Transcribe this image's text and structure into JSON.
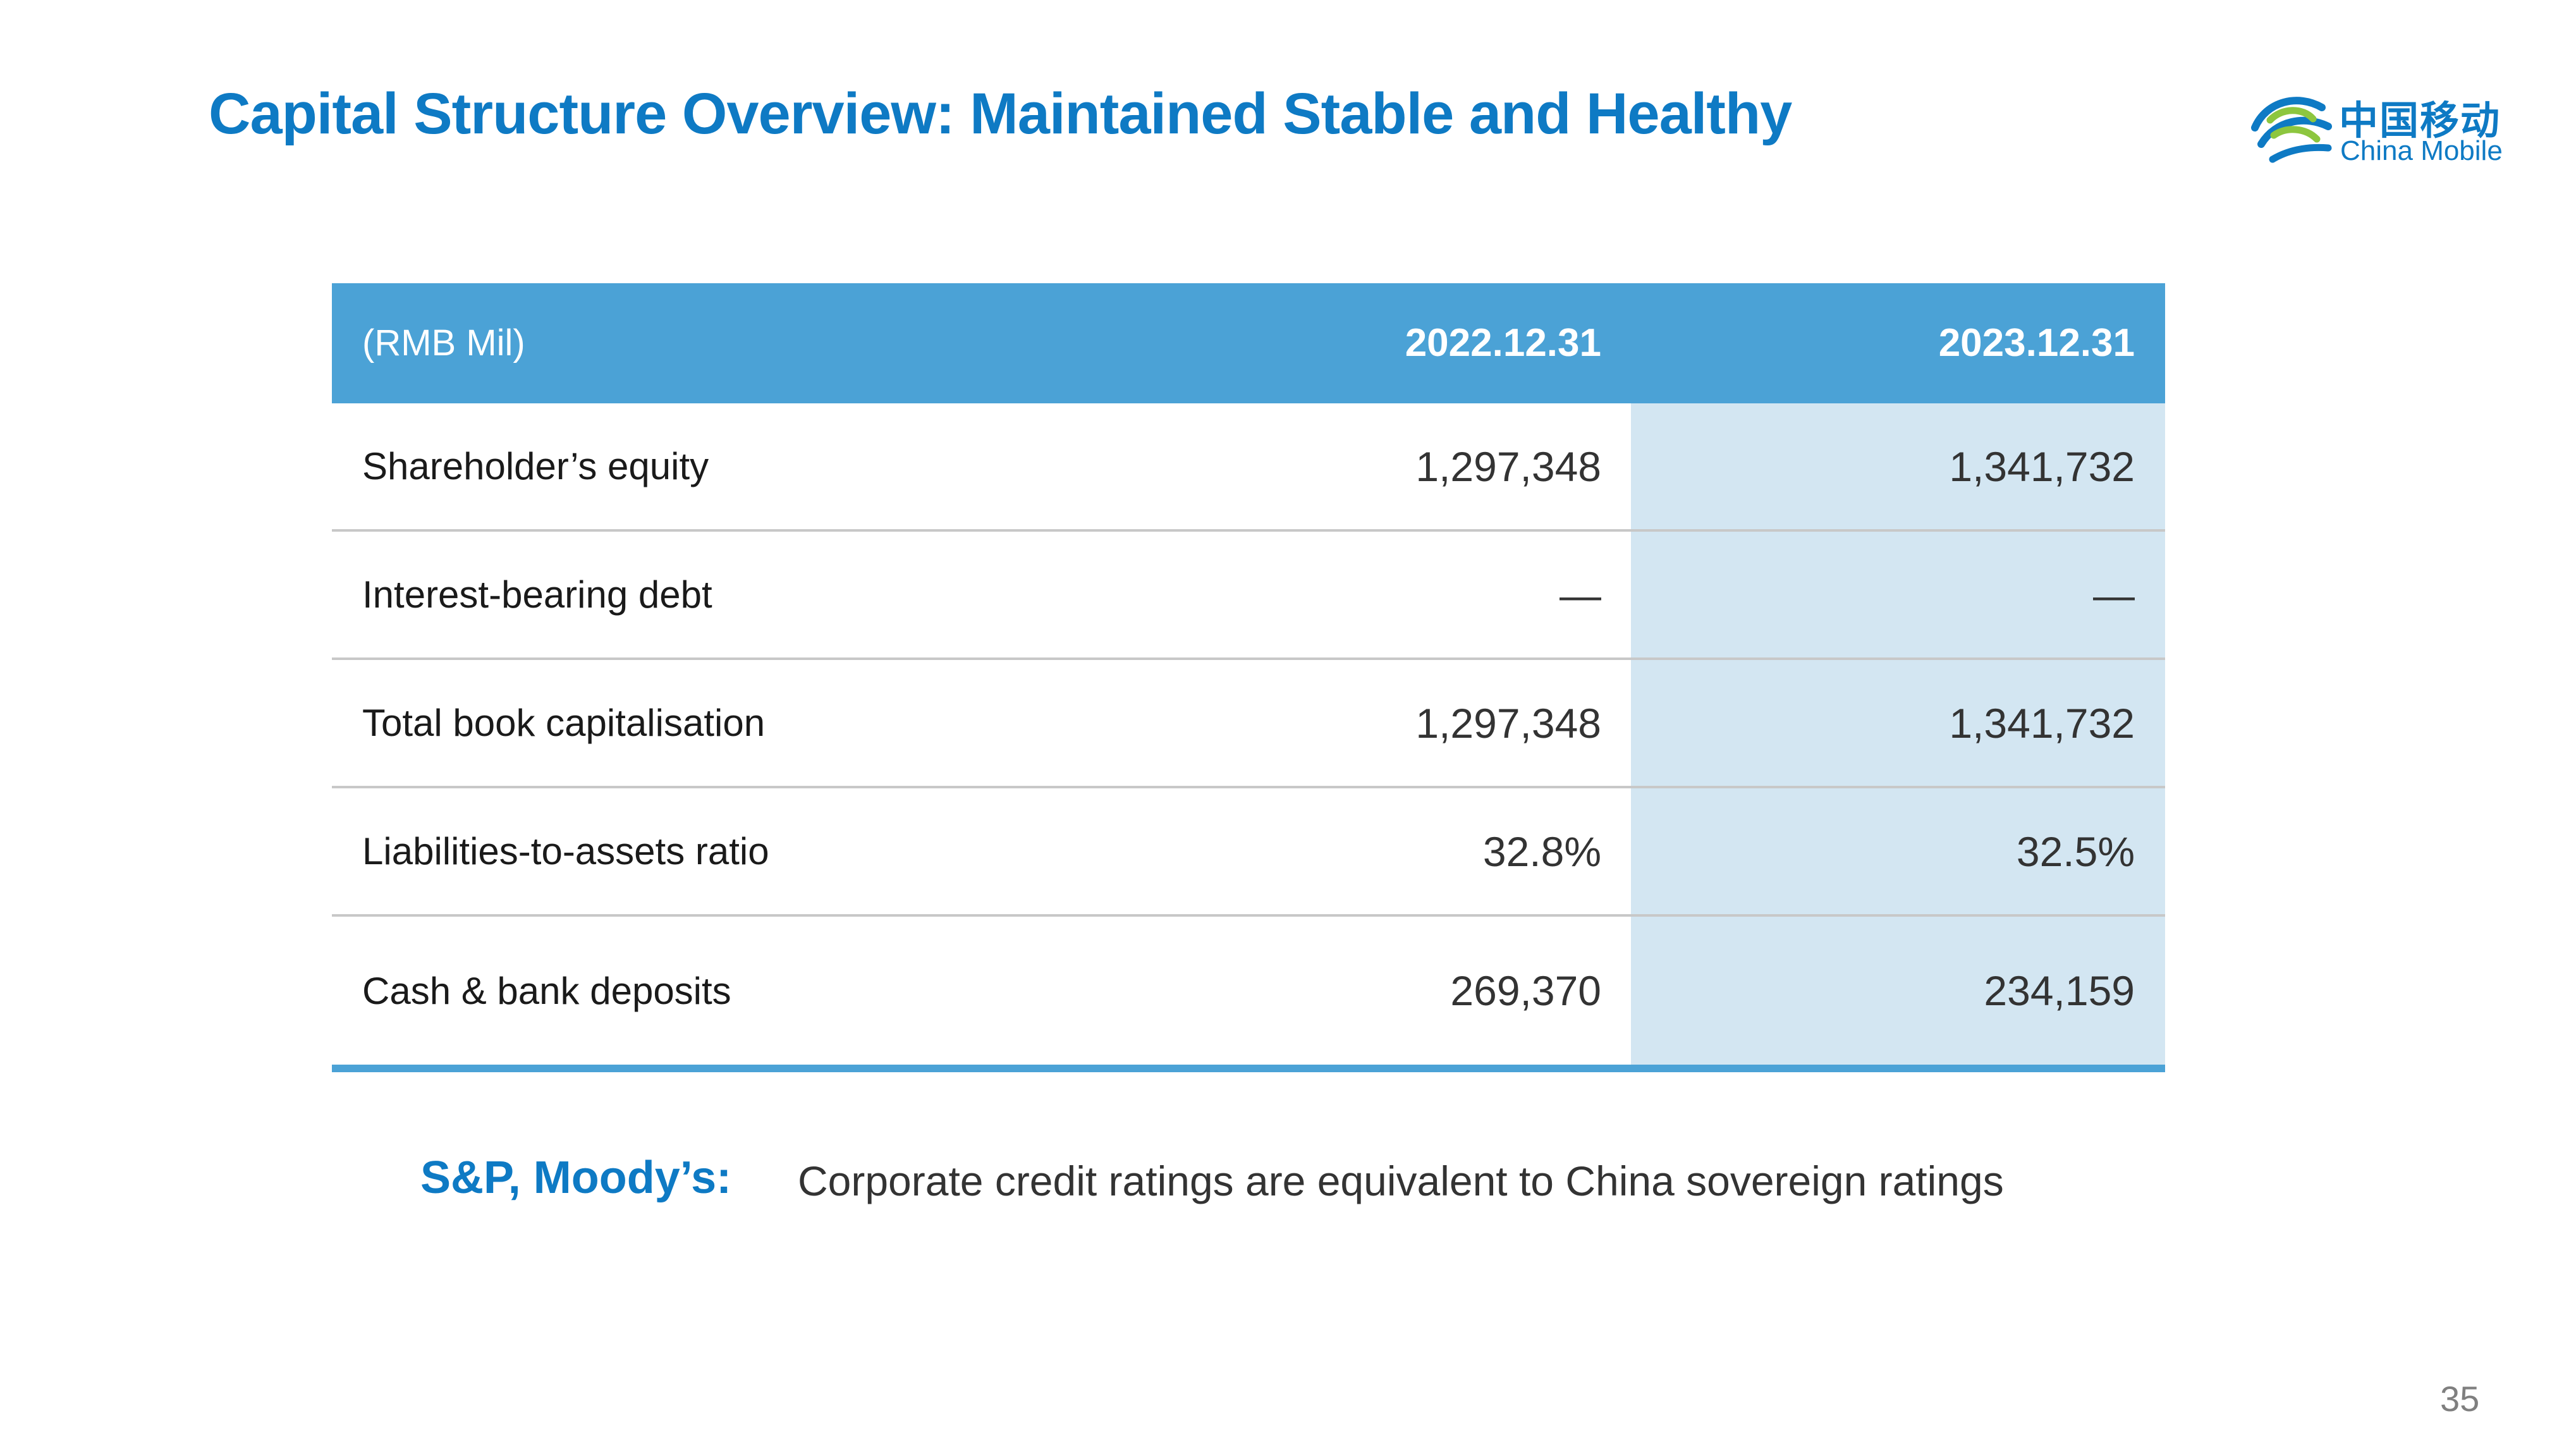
{
  "slide": {
    "title": "Capital Structure Overview: Maintained Stable and Healthy",
    "page_number": "35"
  },
  "logo": {
    "name_cn": "中国移动",
    "name_en": "China Mobile",
    "icon": "china-mobile-logo-icon",
    "brand_color": "#0e7ac4",
    "accent_color": "#8dc63f"
  },
  "table": {
    "unit_label": "(RMB Mil)",
    "columns": [
      "2022.12.31",
      "2023.12.31"
    ],
    "rows": [
      {
        "label": "Shareholder’s equity",
        "values": [
          "1,297,348",
          "1,341,732"
        ]
      },
      {
        "label": "Interest-bearing debt",
        "values": [
          "—",
          "—"
        ]
      },
      {
        "label": "Total book capitalisation",
        "values": [
          "1,297,348",
          "1,341,732"
        ]
      },
      {
        "label": "Liabilities-to-assets ratio",
        "values": [
          "32.8%",
          "32.5%"
        ]
      },
      {
        "label": "Cash & bank deposits",
        "values": [
          "269,370",
          "234,159"
        ]
      }
    ],
    "header_color": "#4ba2d6",
    "highlight_column_color": "#d3e6f2"
  },
  "note": {
    "label": "S&P, Moody’s:",
    "text": "Corporate credit ratings are equivalent to China sovereign ratings"
  }
}
